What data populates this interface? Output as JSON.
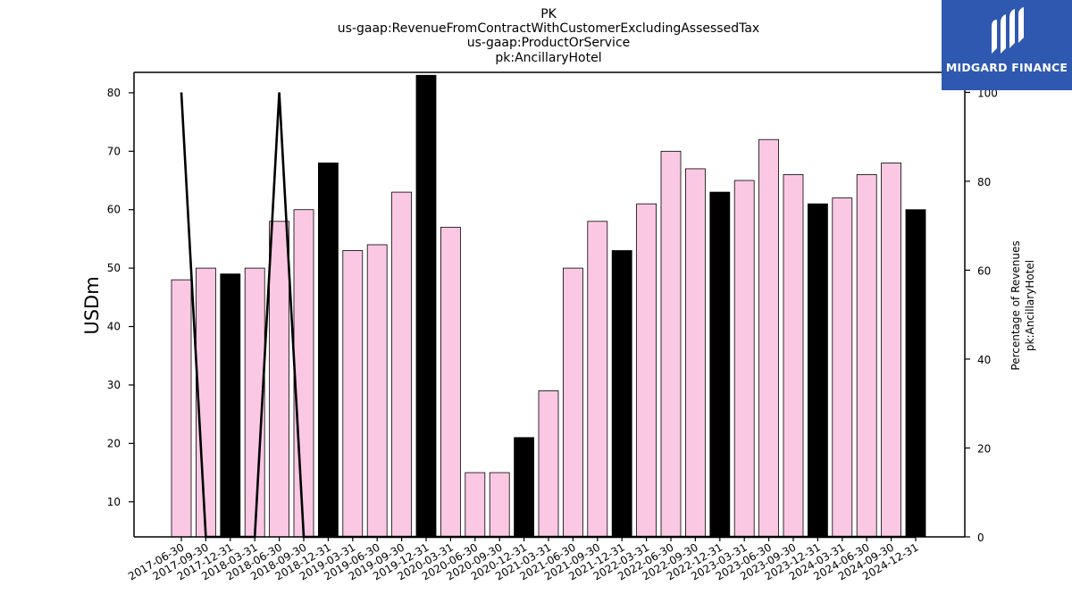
{
  "title_lines": [
    "PK",
    "us-gaap:RevenueFromContractWithCustomerExcludingAssessedTax",
    "us-gaap:ProductOrService",
    "pk:AncillaryHotel"
  ],
  "logo": {
    "text": "MIDGARD FINANCE",
    "icon": "midgard-logo-icon",
    "background": "#2f58b0"
  },
  "chart_data": {
    "type": "bar",
    "categories": [
      "2017-06-30",
      "2017-09-30",
      "2017-12-31",
      "2018-03-31",
      "2018-06-30",
      "2018-09-30",
      "2018-12-31",
      "2019-03-31",
      "2019-06-30",
      "2019-09-30",
      "2019-12-31",
      "2020-03-31",
      "2020-06-30",
      "2020-09-30",
      "2020-12-31",
      "2021-03-31",
      "2021-06-30",
      "2021-09-30",
      "2021-12-31",
      "2022-03-31",
      "2022-06-30",
      "2022-09-30",
      "2022-12-31",
      "2023-03-31",
      "2023-06-30",
      "2023-09-30",
      "2023-12-31",
      "2024-03-31",
      "2024-06-30",
      "2024-09-30",
      "2024-12-31"
    ],
    "values": [
      48,
      50,
      49,
      50,
      58,
      60,
      68,
      53,
      54,
      63,
      83,
      57,
      15,
      15,
      21,
      29,
      50,
      58,
      53,
      61,
      70,
      67,
      63,
      65,
      72,
      66,
      61,
      62,
      66,
      68,
      60
    ],
    "bar_colors": [
      "#fbc8e4",
      "#fbc8e4",
      "#000000",
      "#fbc8e4",
      "#fbc8e4",
      "#fbc8e4",
      "#000000",
      "#fbc8e4",
      "#fbc8e4",
      "#fbc8e4",
      "#000000",
      "#fbc8e4",
      "#fbc8e4",
      "#fbc8e4",
      "#000000",
      "#fbc8e4",
      "#fbc8e4",
      "#fbc8e4",
      "#000000",
      "#fbc8e4",
      "#fbc8e4",
      "#fbc8e4",
      "#000000",
      "#fbc8e4",
      "#fbc8e4",
      "#fbc8e4",
      "#000000",
      "#fbc8e4",
      "#fbc8e4",
      "#fbc8e4",
      "#000000"
    ],
    "line_series": {
      "axis": "right",
      "values": [
        100,
        0,
        0,
        0,
        100,
        0,
        0,
        0,
        0,
        0,
        0,
        0,
        0,
        0,
        0,
        0,
        0,
        0,
        0,
        0,
        0,
        0,
        0,
        0,
        0,
        0,
        0,
        0,
        0,
        0,
        0
      ],
      "color": "#000000"
    },
    "ylabel": "USDm",
    "ylim": [
      4,
      83.5
    ],
    "yticks": [
      10,
      20,
      30,
      40,
      50,
      60,
      70,
      80
    ],
    "y2label_lines": [
      "Percentage of Revenues",
      "pk:AncillaryHotel"
    ],
    "y2lim": [
      0,
      104.5
    ],
    "y2ticks": [
      0,
      20,
      40,
      60,
      80,
      100
    ],
    "grid": false,
    "legend": "none"
  }
}
